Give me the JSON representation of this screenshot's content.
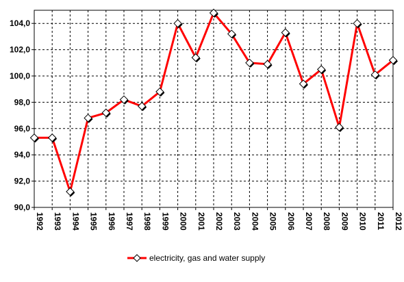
{
  "chart_data": {
    "type": "line",
    "title": "",
    "xlabel": "",
    "ylabel": "",
    "x": [
      "1992",
      "1993",
      "1994",
      "1995",
      "1996",
      "1997",
      "1998",
      "1999",
      "2000",
      "2001",
      "2002",
      "2003",
      "2004",
      "2005",
      "2006",
      "2007",
      "2008",
      "2009",
      "2010",
      "2011",
      "2012"
    ],
    "series": [
      {
        "name": "electricity, gas and water supply",
        "color": "#ff0000",
        "marker": "diamond",
        "values": [
          95.3,
          95.3,
          91.2,
          96.8,
          97.2,
          98.2,
          97.7,
          98.8,
          104.0,
          101.4,
          104.8,
          103.2,
          101.0,
          100.9,
          103.3,
          99.4,
          100.5,
          96.1,
          104.0,
          100.1,
          101.2
        ]
      }
    ],
    "ylim": [
      90,
      105
    ],
    "yticks": [
      "90,0",
      "92,0",
      "94,0",
      "96,0",
      "98,0",
      "100,0",
      "102,0",
      "104,0"
    ],
    "grid": true,
    "legend_position": "bottom"
  }
}
